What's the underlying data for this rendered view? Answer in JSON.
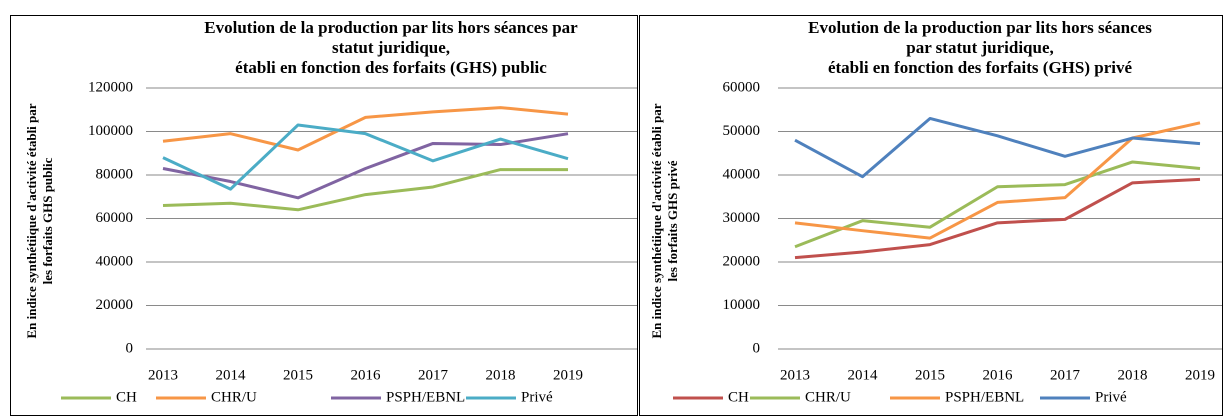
{
  "chart_data": [
    {
      "type": "line",
      "title": [
        "Evolution de la production par lits hors séances par",
        "statut juridique,",
        "établi en fonction des forfaits (GHS) public"
      ],
      "y_label": [
        "En indice synthétiique d'activité établi par",
        "les forfaits GHS public"
      ],
      "categories": [
        "2013",
        "2014",
        "2015",
        "2016",
        "2017",
        "2018",
        "2019"
      ],
      "ylim": [
        0,
        120000
      ],
      "yticks": [
        0,
        20000,
        40000,
        60000,
        80000,
        100000,
        120000
      ],
      "grid": true,
      "series": [
        {
          "name": "CH",
          "color": "#9bbb59",
          "values": [
            66000,
            67000,
            64000,
            71000,
            74500,
            82500,
            82500
          ]
        },
        {
          "name": "CHR/U",
          "color": "#f79646",
          "values": [
            95500,
            99000,
            91500,
            106500,
            109000,
            111000,
            108000
          ]
        },
        {
          "name": "PSPH/EBNL",
          "color": "#8064a2",
          "values": [
            83000,
            77000,
            69500,
            83000,
            94500,
            94000,
            99000
          ]
        },
        {
          "name": "Privé",
          "color": "#4bacc6",
          "values": [
            88000,
            73500,
            103000,
            99000,
            86500,
            96500,
            87500
          ]
        }
      ]
    },
    {
      "type": "line",
      "title": [
        "Evolution de la production par lits hors séances",
        "par statut juridique,",
        "établi en fonction des forfaits (GHS) privé"
      ],
      "y_label": [
        "En indice synthétiique d'activité établi par",
        "les forfaits GHS privé"
      ],
      "categories": [
        "2013",
        "2014",
        "2015",
        "2016",
        "2017",
        "2018",
        "2019"
      ],
      "ylim": [
        0,
        60000
      ],
      "yticks": [
        0,
        10000,
        20000,
        30000,
        40000,
        50000,
        60000
      ],
      "grid": true,
      "series": [
        {
          "name": "CH",
          "color": "#c0504d",
          "values": [
            21000,
            22300,
            24000,
            29000,
            29800,
            38200,
            39000
          ]
        },
        {
          "name": "CHR/U",
          "color": "#9bbb59",
          "values": [
            23500,
            29500,
            28000,
            37300,
            37800,
            43000,
            41500
          ]
        },
        {
          "name": "PSPH/EBNL",
          "color": "#f79646",
          "values": [
            29000,
            27200,
            25500,
            33700,
            34800,
            48500,
            52000
          ]
        },
        {
          "name": "Privé",
          "color": "#4f81bd",
          "values": [
            48000,
            39600,
            53000,
            49000,
            44300,
            48500,
            47200
          ]
        }
      ]
    }
  ]
}
